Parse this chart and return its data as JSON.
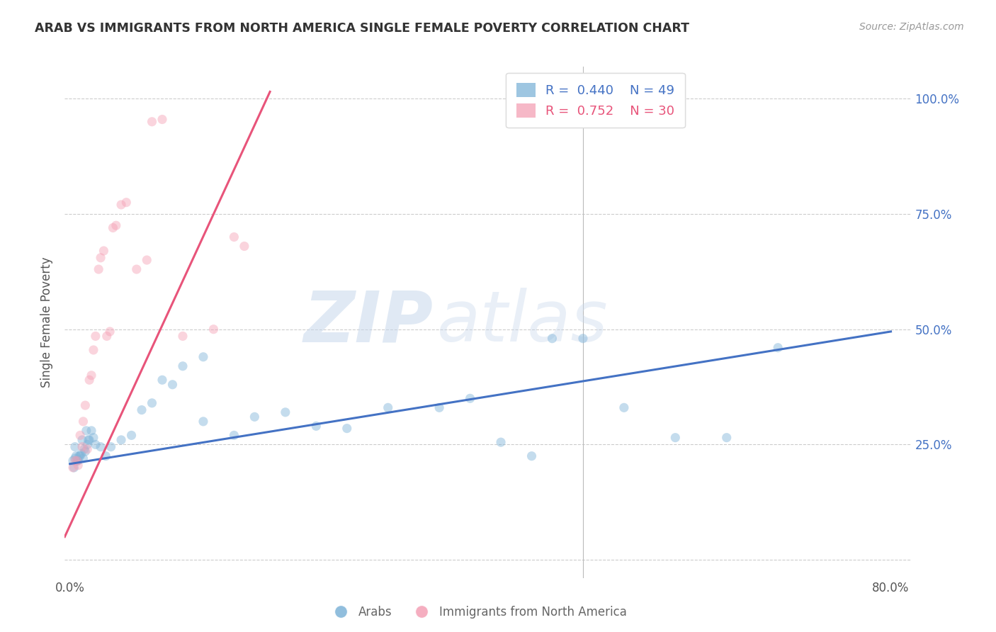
{
  "title": "ARAB VS IMMIGRANTS FROM NORTH AMERICA SINGLE FEMALE POVERTY CORRELATION CHART",
  "source": "Source: ZipAtlas.com",
  "ylabel": "Single Female Poverty",
  "ytick_labels_right": [
    "100.0%",
    "75.0%",
    "50.0%",
    "25.0%"
  ],
  "ytick_values": [
    0.0,
    0.25,
    0.5,
    0.75,
    1.0
  ],
  "xtick_positions": [
    0.0,
    0.1,
    0.2,
    0.3,
    0.4,
    0.5,
    0.6,
    0.7,
    0.8
  ],
  "xtick_labels": [
    "0.0%",
    "",
    "",
    "",
    "",
    "",
    "",
    "",
    "80.0%"
  ],
  "xlim": [
    -0.005,
    0.82
  ],
  "ylim": [
    -0.04,
    1.07
  ],
  "legend_blue_r": "0.440",
  "legend_blue_n": "49",
  "legend_pink_r": "0.752",
  "legend_pink_n": "30",
  "blue_color": "#7EB3D8",
  "pink_color": "#F4A0B5",
  "blue_line_color": "#4472C4",
  "pink_line_color": "#E8547A",
  "blue_scatter_x": [
    0.003,
    0.005,
    0.004,
    0.006,
    0.008,
    0.01,
    0.012,
    0.014,
    0.016,
    0.018,
    0.005,
    0.007,
    0.009,
    0.011,
    0.013,
    0.015,
    0.017,
    0.019,
    0.021,
    0.023,
    0.025,
    0.03,
    0.035,
    0.04,
    0.05,
    0.06,
    0.07,
    0.09,
    0.11,
    0.13,
    0.08,
    0.1,
    0.13,
    0.16,
    0.18,
    0.21,
    0.24,
    0.27,
    0.31,
    0.36,
    0.39,
    0.42,
    0.45,
    0.47,
    0.5,
    0.54,
    0.59,
    0.64,
    0.69
  ],
  "blue_scatter_y": [
    0.215,
    0.245,
    0.2,
    0.225,
    0.215,
    0.225,
    0.26,
    0.24,
    0.28,
    0.26,
    0.22,
    0.215,
    0.225,
    0.23,
    0.22,
    0.235,
    0.25,
    0.26,
    0.28,
    0.265,
    0.25,
    0.245,
    0.225,
    0.245,
    0.26,
    0.27,
    0.325,
    0.39,
    0.42,
    0.44,
    0.34,
    0.38,
    0.3,
    0.27,
    0.31,
    0.32,
    0.29,
    0.285,
    0.33,
    0.33,
    0.35,
    0.255,
    0.225,
    0.48,
    0.48,
    0.33,
    0.265,
    0.265,
    0.46
  ],
  "pink_scatter_x": [
    0.003,
    0.005,
    0.007,
    0.008,
    0.01,
    0.012,
    0.013,
    0.015,
    0.017,
    0.019,
    0.021,
    0.023,
    0.025,
    0.028,
    0.03,
    0.033,
    0.036,
    0.039,
    0.042,
    0.045,
    0.05,
    0.055,
    0.065,
    0.075,
    0.08,
    0.09,
    0.11,
    0.14,
    0.16,
    0.17
  ],
  "pink_scatter_y": [
    0.2,
    0.215,
    0.215,
    0.205,
    0.27,
    0.245,
    0.3,
    0.335,
    0.24,
    0.39,
    0.4,
    0.455,
    0.485,
    0.63,
    0.655,
    0.67,
    0.485,
    0.495,
    0.72,
    0.725,
    0.77,
    0.775,
    0.63,
    0.65,
    0.95,
    0.955,
    0.485,
    0.5,
    0.7,
    0.68
  ],
  "blue_line_x": [
    0.0,
    0.8
  ],
  "blue_line_y": [
    0.208,
    0.495
  ],
  "pink_line_x": [
    -0.005,
    0.195
  ],
  "pink_line_y": [
    0.05,
    1.015
  ],
  "marker_size": 90,
  "marker_alpha": 0.45,
  "grid_color": "#CCCCCC",
  "grid_style": "--",
  "background_color": "#FFFFFF",
  "vline_x": 0.5,
  "watermark_zip_color": "#C8D8EC",
  "watermark_atlas_color": "#C8D8EC"
}
